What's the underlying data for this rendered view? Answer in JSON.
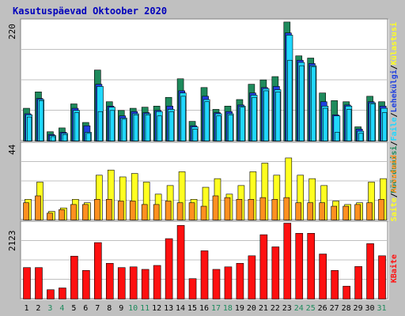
{
  "title": "Kasutuspäevad Oktoober 2020",
  "colors": {
    "background": "#c0c0c0",
    "panel": "#ffffff",
    "title": "#0000bb",
    "visits": "#1e8a5c",
    "pages": "#2040e0",
    "files": "#20d8ff",
    "sites": "#ffff20",
    "hits_sites": "#ff9020",
    "kbytes": "#ff1010",
    "weekend": "#1e8a5c",
    "weekday": "#000000"
  },
  "labels": {
    "top_panel_max": "220",
    "top_panel_legend": [
      "Pöördumisi",
      "/",
      "Faile",
      "/",
      "Lehekülgi",
      "/",
      "Külastusi"
    ],
    "middle_panel_max": "44",
    "middle_panel_legend": [
      "Saite",
      "/",
      "Arvuteid"
    ],
    "bottom_panel_max": "2123",
    "bottom_panel_legend": [
      "KBaite"
    ]
  },
  "chart_data": [
    {
      "type": "bar",
      "panel": "top",
      "categories": [
        "1",
        "2",
        "3",
        "4",
        "5",
        "6",
        "7",
        "8",
        "9",
        "10",
        "11",
        "12",
        "13",
        "14",
        "15",
        "16",
        "17",
        "18",
        "19",
        "20",
        "21",
        "22",
        "23",
        "24",
        "25",
        "26",
        "27",
        "28",
        "29",
        "30",
        "31"
      ],
      "weekend": [
        "3",
        "4",
        "10",
        "11",
        "17",
        "18",
        "24",
        "25",
        "31"
      ],
      "ylim": [
        0,
        220
      ],
      "series": [
        {
          "name": "Pöördumisi",
          "values": [
            60,
            90,
            17,
            24,
            68,
            34,
            130,
            72,
            56,
            60,
            62,
            64,
            80,
            114,
            36,
            98,
            58,
            64,
            76,
            104,
            112,
            118,
            218,
            156,
            152,
            88,
            74,
            72,
            26,
            82,
            72
          ]
        },
        {
          "name": "Faile",
          "values": [
            50,
            78,
            12,
            16,
            60,
            28,
            104,
            64,
            46,
            54,
            52,
            56,
            64,
            92,
            28,
            82,
            52,
            54,
            66,
            88,
            98,
            100,
            198,
            148,
            142,
            72,
            48,
            66,
            22,
            72,
            64
          ]
        },
        {
          "name": "Lehekülgi",
          "values": [
            48,
            76,
            10,
            14,
            56,
            16,
            100,
            62,
            42,
            50,
            50,
            54,
            58,
            88,
            26,
            76,
            50,
            50,
            64,
            84,
            96,
            94,
            194,
            144,
            138,
            64,
            46,
            64,
            18,
            70,
            60
          ]
        },
        {
          "name": "Külastusi",
          "values": [
            44,
            74,
            8,
            12,
            52,
            14,
            54,
            56,
            40,
            48,
            48,
            46,
            54,
            82,
            22,
            72,
            46,
            48,
            62,
            80,
            92,
            90,
            148,
            138,
            136,
            60,
            16,
            58,
            14,
            68,
            52
          ]
        }
      ]
    },
    {
      "type": "bar",
      "panel": "middle",
      "categories": [
        "1",
        "2",
        "3",
        "4",
        "5",
        "6",
        "7",
        "8",
        "9",
        "10",
        "11",
        "12",
        "13",
        "14",
        "15",
        "16",
        "17",
        "18",
        "19",
        "20",
        "21",
        "22",
        "23",
        "24",
        "25",
        "26",
        "27",
        "28",
        "29",
        "30",
        "31"
      ],
      "ylim": [
        0,
        44
      ],
      "series": [
        {
          "name": "Saite",
          "values": [
            12,
            22,
            5,
            7,
            12,
            10,
            26,
            29,
            25,
            27,
            22,
            15,
            20,
            28,
            12,
            19,
            24,
            15,
            20,
            28,
            33,
            26,
            36,
            26,
            24,
            20,
            11,
            9,
            10,
            22,
            24
          ]
        },
        {
          "name": "Arvuteid",
          "values": [
            10,
            14,
            4,
            6,
            9,
            9,
            12,
            12,
            11,
            11,
            9,
            9,
            11,
            10,
            10,
            8,
            14,
            13,
            12,
            12,
            13,
            12,
            13,
            10,
            10,
            10,
            8,
            8,
            9,
            10,
            12
          ]
        }
      ]
    },
    {
      "type": "bar",
      "panel": "bottom",
      "categories": [
        "1",
        "2",
        "3",
        "4",
        "5",
        "6",
        "7",
        "8",
        "9",
        "10",
        "11",
        "12",
        "13",
        "14",
        "15",
        "16",
        "17",
        "18",
        "19",
        "20",
        "21",
        "22",
        "23",
        "24",
        "25",
        "26",
        "27",
        "28",
        "29",
        "30",
        "31"
      ],
      "ylim": [
        0,
        2123
      ],
      "series": [
        {
          "name": "KBaite",
          "values": [
            880,
            880,
            260,
            310,
            1200,
            800,
            1580,
            1000,
            880,
            900,
            830,
            940,
            1690,
            2060,
            570,
            1350,
            830,
            900,
            1000,
            1210,
            1800,
            1460,
            2123,
            1840,
            1840,
            1260,
            800,
            360,
            910,
            1550,
            1210
          ]
        }
      ]
    }
  ]
}
